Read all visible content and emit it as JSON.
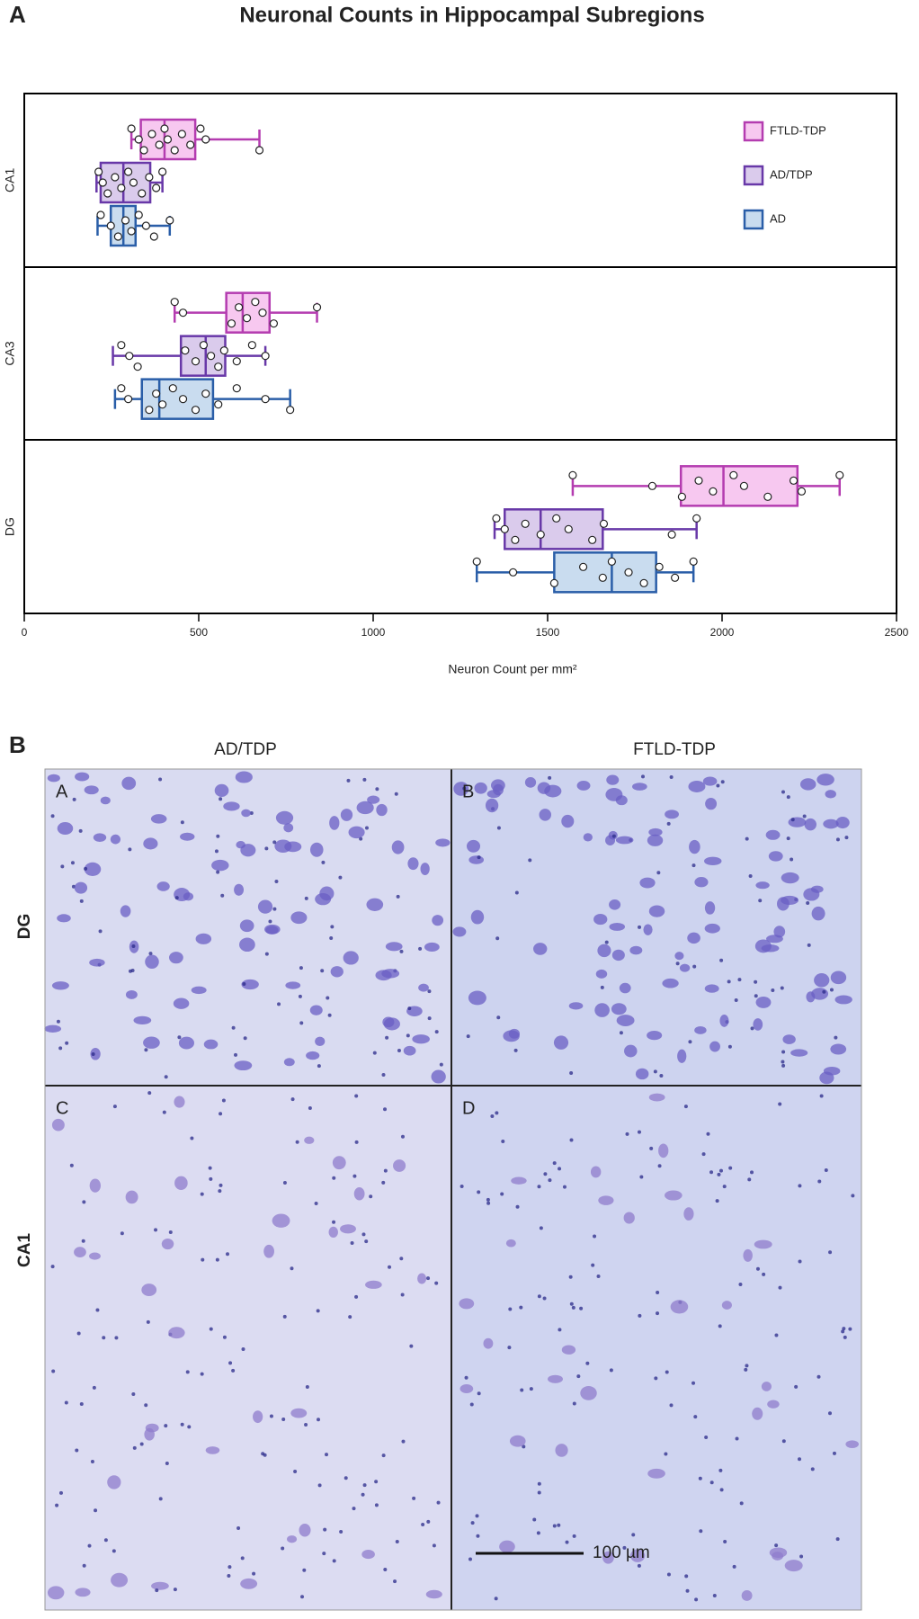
{
  "figure": {
    "panel_labels": [
      "A",
      "B"
    ]
  },
  "chart_data": {
    "type": "boxplot",
    "title": "Neuronal Counts in Hippocampal Subregions",
    "x_label": "Neuron Count per mm²",
    "categories": [
      "CA1",
      "CA3",
      "DG"
    ],
    "xlim": [
      0,
      2500
    ],
    "xticks": [
      0,
      500,
      1000,
      1500,
      2000,
      2500
    ],
    "legend": "upper right",
    "series": [
      {
        "name": "FTLD-TDP",
        "color": "#b43cb0",
        "fill": "#f7c8f0",
        "boxes": [
          {
            "min": 307,
            "q1": 334,
            "median": 402,
            "q3": 490,
            "max": 674,
            "points": [
              307,
              328,
              343,
              366,
              387,
              402,
              411,
              431,
              452,
              476,
              505,
              520,
              674
            ]
          },
          {
            "min": 431,
            "q1": 579,
            "median": 626,
            "q3": 703,
            "max": 839,
            "points": [
              431,
              455,
              594,
              615,
              638,
              662,
              683,
              715,
              839
            ]
          },
          {
            "min": 1572,
            "q1": 1882,
            "median": 2004,
            "q3": 2216,
            "max": 2337,
            "points": [
              1572,
              1800,
              1885,
              1933,
              1974,
              2033,
              2063,
              2131,
              2205,
              2228,
              2337
            ]
          }
        ]
      },
      {
        "name": "AD/TDP",
        "color": "#6838a8",
        "fill": "#dacbec",
        "boxes": [
          {
            "min": 207,
            "q1": 219,
            "median": 284,
            "q3": 361,
            "max": 396,
            "points": [
              213,
              225,
              239,
              260,
              278,
              298,
              313,
              337,
              358,
              378,
              396
            ]
          },
          {
            "min": 254,
            "q1": 449,
            "median": 520,
            "q3": 576,
            "max": 691,
            "points": [
              278,
              301,
              325,
              461,
              491,
              514,
              535,
              556,
              573,
              609,
              653,
              691
            ]
          },
          {
            "min": 1348,
            "q1": 1377,
            "median": 1480,
            "q3": 1658,
            "max": 1927,
            "points": [
              1353,
              1377,
              1407,
              1436,
              1480,
              1525,
              1560,
              1628,
              1661,
              1856,
              1927
            ]
          }
        ]
      },
      {
        "name": "AD",
        "color": "#2a5ea8",
        "fill": "#c9dcef",
        "boxes": [
          {
            "min": 210,
            "q1": 248,
            "median": 284,
            "q3": 319,
            "max": 417,
            "points": [
              219,
              248,
              269,
              290,
              307,
              328,
              349,
              372,
              417
            ]
          },
          {
            "min": 260,
            "q1": 337,
            "median": 387,
            "q3": 541,
            "max": 762,
            "points": [
              278,
              298,
              358,
              378,
              396,
              426,
              455,
              491,
              520,
              556,
              609,
              691,
              762
            ]
          },
          {
            "min": 1297,
            "q1": 1519,
            "median": 1684,
            "q3": 1811,
            "max": 1918,
            "points": [
              1297,
              1401,
              1519,
              1602,
              1658,
              1684,
              1732,
              1776,
              1820,
              1865,
              1918
            ]
          }
        ]
      }
    ]
  },
  "panel_b": {
    "columns": [
      "AD/TDP",
      "FTLD-TDP"
    ],
    "rows": [
      "DG",
      "CA1"
    ],
    "image_letters": [
      "A",
      "B",
      "C",
      "D"
    ],
    "scale_bar": "100 µm"
  }
}
